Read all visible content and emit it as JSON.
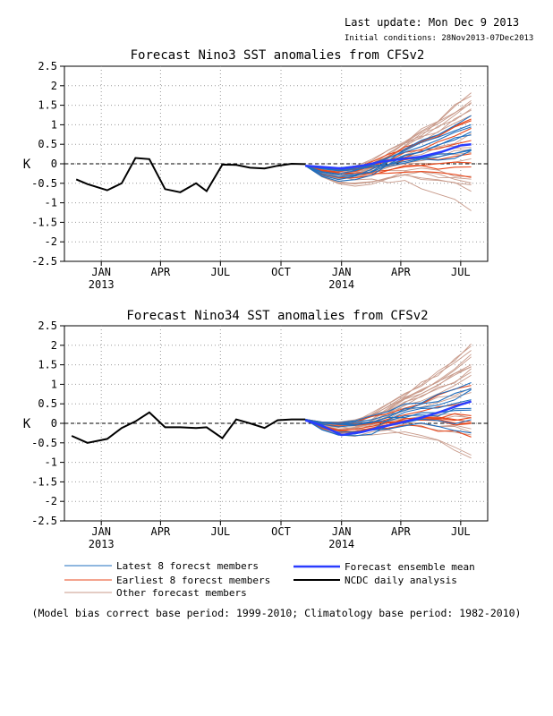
{
  "header": {
    "last_update": "Last update: Mon Dec 9 2013",
    "initial_conditions": "Initial conditions: 28Nov2013-07Dec2013"
  },
  "colors": {
    "latest": "#1f6fbf",
    "earliest": "#e8481c",
    "other": "#c89a8a",
    "mean": "#2a3cff",
    "analysis": "#000000"
  },
  "legend": {
    "latest": "Latest 8 forecst members",
    "earliest": "Earliest 8 forecst members",
    "other": "Other forecast members",
    "mean": "Forecast ensemble mean",
    "analysis": "NCDC daily analysis"
  },
  "footnote": "(Model bias correct base period: 1999-2010; Climatology base period: 1982-2010)",
  "chart_data": [
    {
      "type": "line",
      "title": "Forecast Nino3 SST anomalies from CFSv2",
      "ylabel": "K",
      "ylim": [
        -2.5,
        2.5
      ],
      "yticks": [
        "2.5",
        "2",
        "1.5",
        "1",
        "0.5",
        "0",
        "-0.5",
        "-1",
        "-1.5",
        "-2",
        "-2.5"
      ],
      "xticks": [
        {
          "label": "JAN",
          "year": "2013"
        },
        {
          "label": "APR",
          "year": ""
        },
        {
          "label": "JUL",
          "year": ""
        },
        {
          "label": "OCT",
          "year": ""
        },
        {
          "label": "JAN",
          "year": "2014"
        },
        {
          "label": "APR",
          "year": ""
        },
        {
          "label": "JUL",
          "year": ""
        }
      ],
      "grid": true,
      "analysis": {
        "x": [
          "2012-12-08",
          "2012-12-25",
          "2013-01-24",
          "2013-02-15",
          "2013-03-08",
          "2013-03-29",
          "2013-04-22",
          "2013-05-15",
          "2013-06-08",
          "2013-06-24",
          "2013-07-18",
          "2013-08-08",
          "2013-08-29",
          "2013-09-20",
          "2013-10-10",
          "2013-10-31",
          "2013-11-21"
        ],
        "values": [
          -0.4,
          -0.52,
          -0.68,
          -0.5,
          0.15,
          0.12,
          -0.65,
          -0.73,
          -0.5,
          -0.7,
          -0.02,
          -0.03,
          -0.1,
          -0.12,
          -0.05,
          0.0,
          -0.01
        ]
      },
      "mean": {
        "x": [
          "2013-11-21",
          "2013-12-15",
          "2014-01-15",
          "2014-02-15",
          "2014-03-15",
          "2014-04-15",
          "2014-05-15",
          "2014-06-15",
          "2014-07-15",
          "2014-07-31"
        ],
        "values": [
          -0.05,
          -0.08,
          -0.12,
          -0.05,
          0.05,
          0.12,
          0.18,
          0.3,
          0.47,
          0.5
        ]
      }
    },
    {
      "type": "line",
      "title": "Forecast Nino34 SST anomalies from CFSv2",
      "ylabel": "K",
      "ylim": [
        -2.5,
        2.5
      ],
      "yticks": [
        "2.5",
        "2",
        "1.5",
        "1",
        "0.5",
        "0",
        "-0.5",
        "-1",
        "-1.5",
        "-2",
        "-2.5"
      ],
      "xticks": [
        {
          "label": "JAN",
          "year": "2013"
        },
        {
          "label": "APR",
          "year": ""
        },
        {
          "label": "JUL",
          "year": ""
        },
        {
          "label": "OCT",
          "year": ""
        },
        {
          "label": "JAN",
          "year": "2014"
        },
        {
          "label": "APR",
          "year": ""
        },
        {
          "label": "JUL",
          "year": ""
        }
      ],
      "grid": true,
      "analysis": {
        "x": [
          "2012-12-01",
          "2012-12-25",
          "2013-01-24",
          "2013-02-15",
          "2013-03-08",
          "2013-03-29",
          "2013-04-22",
          "2013-05-15",
          "2013-06-08",
          "2013-06-24",
          "2013-07-18",
          "2013-08-08",
          "2013-08-29",
          "2013-09-20",
          "2013-10-10",
          "2013-10-31",
          "2013-11-21"
        ],
        "values": [
          -0.32,
          -0.5,
          -0.4,
          -0.12,
          0.05,
          0.28,
          -0.1,
          -0.1,
          -0.12,
          -0.1,
          -0.38,
          0.1,
          0.0,
          -0.12,
          0.08,
          0.1,
          0.1
        ]
      },
      "mean": {
        "x": [
          "2013-11-21",
          "2013-12-15",
          "2014-01-15",
          "2014-02-15",
          "2014-03-15",
          "2014-04-15",
          "2014-05-15",
          "2014-06-15",
          "2014-07-15",
          "2014-07-31"
        ],
        "values": [
          0.08,
          -0.05,
          -0.3,
          -0.22,
          -0.1,
          0.02,
          0.14,
          0.3,
          0.48,
          0.56
        ]
      }
    }
  ]
}
